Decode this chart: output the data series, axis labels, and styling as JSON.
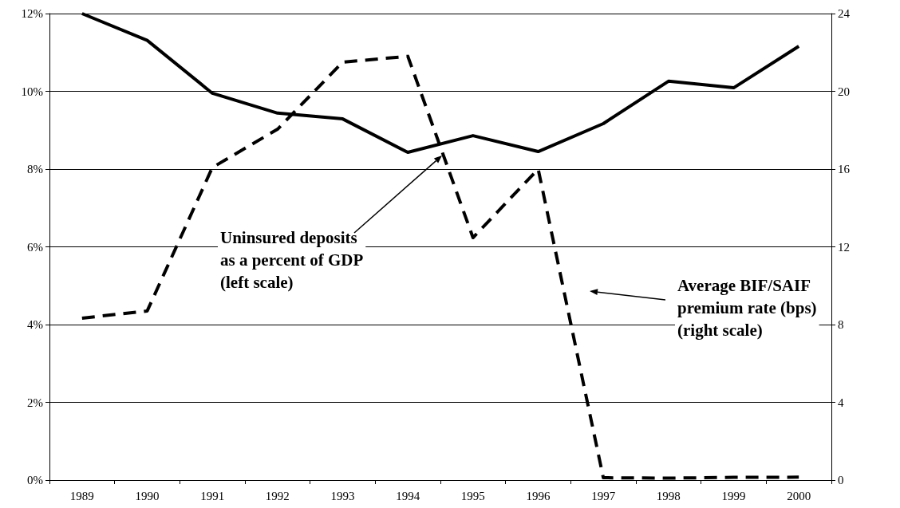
{
  "chart_data": {
    "type": "line",
    "categories": [
      "1989",
      "1990",
      "1991",
      "1992",
      "1993",
      "1994",
      "1995",
      "1996",
      "1997",
      "1998",
      "1999",
      "2000"
    ],
    "series": [
      {
        "color": "#000000",
        "line_style": "solid",
        "values": [
          12.0,
          11.31,
          9.95,
          9.44,
          9.29,
          8.43,
          8.86,
          8.45,
          9.17,
          10.26,
          10.09,
          11.16
        ]
      },
      {
        "color": "#000000",
        "line_style": "dashed",
        "axis": "y2",
        "values": [
          8.33,
          8.7,
          16.08,
          18.05,
          21.5,
          21.8,
          12.47,
          16.0,
          0.12,
          0.1,
          0.14,
          0.15
        ]
      }
    ],
    "ylim": [
      0,
      12
    ],
    "yticks": [
      {
        "value": 0,
        "label": "0%"
      },
      {
        "value": 2,
        "label": "2%"
      },
      {
        "value": 4,
        "label": "4%"
      },
      {
        "value": 6,
        "label": "6%"
      },
      {
        "value": 8,
        "label": "8%"
      },
      {
        "value": 10,
        "label": "10%"
      },
      {
        "value": 12,
        "label": "12%"
      }
    ],
    "y2lim": [
      0,
      24
    ],
    "y2ticks": [
      0,
      4,
      8,
      12,
      16,
      20,
      24
    ],
    "grid": "y",
    "marker": "none",
    "annotations": [
      "Uninsured deposits\nas a percent of GDP\n(left scale)",
      "Average BIF/SAIF\npremium rate (bps)\n(right scale)"
    ]
  }
}
